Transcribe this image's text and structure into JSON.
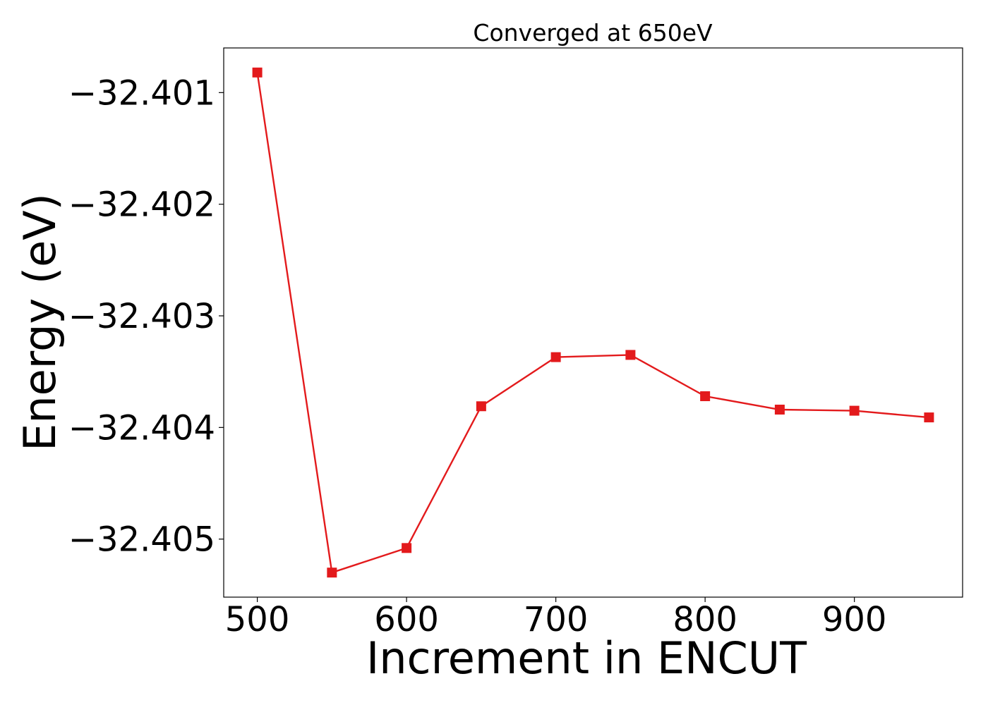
{
  "chart_data": {
    "type": "line",
    "title": "Converged at 650eV",
    "xlabel": "Increment in ENCUT",
    "ylabel": "Energy (eV)",
    "x": [
      500,
      550,
      600,
      650,
      700,
      750,
      800,
      850,
      900,
      950
    ],
    "series": [
      {
        "color": "#e31a1c",
        "marker": "square",
        "values": [
          -32.40082,
          -32.4053,
          -32.40508,
          -32.40381,
          -32.40337,
          -32.40335,
          -32.40372,
          -32.40384,
          -32.40385,
          -32.40391
        ]
      }
    ],
    "xlim": [
      477.5,
      972.5
    ],
    "ylim": [
      -32.40552,
      -32.4006
    ],
    "xticks": [
      500,
      600,
      700,
      800,
      900
    ],
    "xtick_labels": [
      "500",
      "600",
      "700",
      "800",
      "900"
    ],
    "yticks": [
      -32.401,
      -32.402,
      -32.403,
      -32.404,
      -32.405
    ],
    "ytick_labels": [
      "−32.401",
      "−32.402",
      "−32.403",
      "−32.404",
      "−32.405"
    ],
    "grid": false,
    "legend": "none"
  }
}
